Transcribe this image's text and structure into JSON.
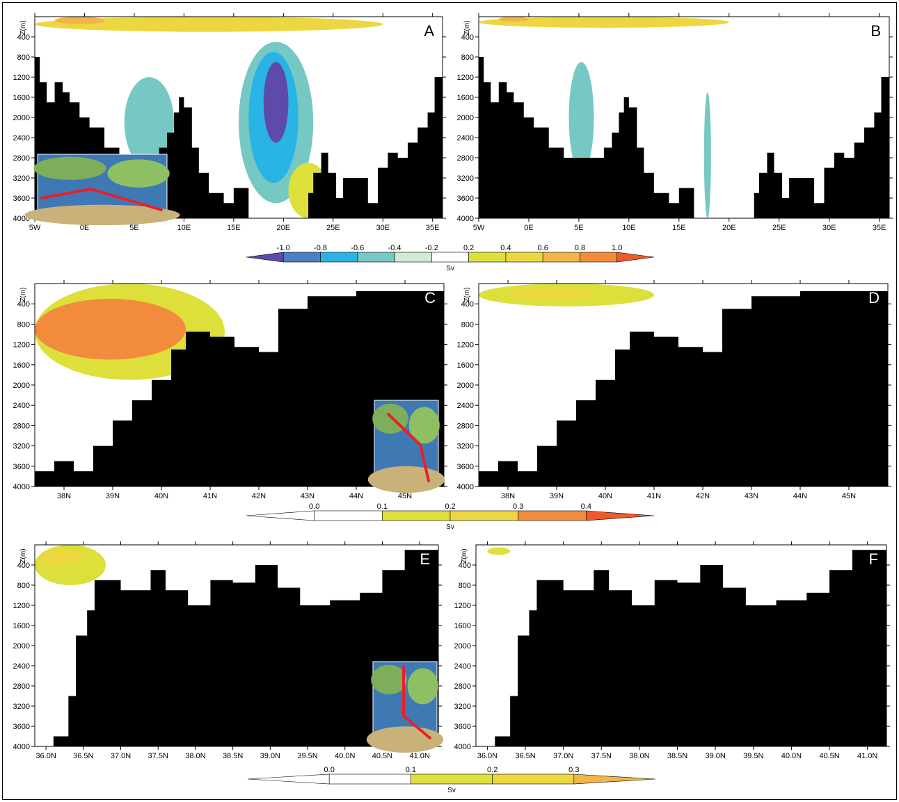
{
  "colors": {
    "land": "#000000",
    "neg": [
      "#d2e9d3",
      "#76c8c3",
      "#2ab4e6",
      "#4e7fc4",
      "#5e4aa8"
    ],
    "pos": [
      "#dde03a",
      "#ecd740",
      "#f2b54a",
      "#f28c3c",
      "#ef5a2a"
    ]
  },
  "colorbars": [
    {
      "ticks": [
        "-1.0",
        "-0.8",
        "-0.6",
        "-0.4",
        "-0.2",
        "0.2",
        "0.4",
        "0.6",
        "0.8",
        "1.0"
      ],
      "unit": "Sv"
    },
    {
      "ticks": [
        "0.0",
        "0.1",
        "0.2",
        "0.3",
        "0.4"
      ],
      "unit": "Sv"
    },
    {
      "ticks": [
        "0.0",
        "0.1",
        "0.2",
        "0.3"
      ],
      "unit": "Sv"
    }
  ],
  "chart_data": [
    {
      "type": "heatmap",
      "panel": "A",
      "ylabel": "Z(m)",
      "xticks": [
        "5W",
        "0E",
        "5E",
        "10E",
        "15E",
        "20E",
        "25E",
        "30E",
        "35E"
      ],
      "yticks": [
        "400",
        "800",
        "1200",
        "1600",
        "2000",
        "2400",
        "2800",
        "3200",
        "3600",
        "4000"
      ],
      "xrange": [
        -5,
        36
      ],
      "yrange": [
        0,
        4000
      ],
      "bathymetry": [
        [
          -5.0,
          800
        ],
        [
          -4.5,
          1300
        ],
        [
          -3.8,
          1700
        ],
        [
          -3.0,
          1300
        ],
        [
          -2.2,
          1500
        ],
        [
          -1.5,
          1700
        ],
        [
          -0.5,
          2000
        ],
        [
          0.5,
          2200
        ],
        [
          2.0,
          2600
        ],
        [
          3.5,
          2800
        ],
        [
          5.0,
          3000
        ],
        [
          6.5,
          2800
        ],
        [
          7.5,
          2600
        ],
        [
          8.3,
          2300
        ],
        [
          9.0,
          1900
        ],
        [
          9.5,
          1600
        ],
        [
          10.0,
          1800
        ],
        [
          10.8,
          2600
        ],
        [
          11.5,
          3100
        ],
        [
          12.5,
          3500
        ],
        [
          14.0,
          3700
        ],
        [
          15.0,
          3400
        ],
        [
          16.5,
          4000
        ],
        [
          21.5,
          4000
        ],
        [
          22.5,
          3500
        ],
        [
          23.0,
          3100
        ],
        [
          23.8,
          2700
        ],
        [
          24.5,
          3100
        ],
        [
          25.3,
          3600
        ],
        [
          26.0,
          3200
        ],
        [
          27.5,
          3200
        ],
        [
          28.5,
          3700
        ],
        [
          29.5,
          3000
        ],
        [
          30.5,
          2700
        ],
        [
          31.5,
          2800
        ],
        [
          32.5,
          2500
        ],
        [
          33.5,
          2200
        ],
        [
          34.5,
          1900
        ],
        [
          35.2,
          1200
        ],
        [
          36.0,
          0
        ]
      ],
      "features": [
        {
          "kind": "surface-cell",
          "x": [
            -5.0,
            30.0
          ],
          "z": [
            0,
            300
          ],
          "value": 0.4
        },
        {
          "kind": "surface-core",
          "x": [
            -3.0,
            2.0
          ],
          "z": [
            0,
            150
          ],
          "value": 0.7
        },
        {
          "kind": "deep-cell",
          "x": [
            15.5,
            23.0
          ],
          "z": [
            500,
            3700
          ],
          "value": -0.2
        },
        {
          "kind": "deep-cell",
          "x": [
            16.5,
            21.5
          ],
          "z": [
            700,
            3300
          ],
          "value": -0.5
        },
        {
          "kind": "deep-cell",
          "x": [
            18.0,
            20.5
          ],
          "z": [
            900,
            2500
          ],
          "value": -0.8
        },
        {
          "kind": "deep-cell",
          "x": [
            4.0,
            9.0
          ],
          "z": [
            1200,
            3000
          ],
          "value": -0.2
        },
        {
          "kind": "deep-cell",
          "x": [
            20.5,
            24.5
          ],
          "z": [
            2900,
            4000
          ],
          "value": 0.2
        }
      ]
    },
    {
      "type": "heatmap",
      "panel": "B",
      "ylabel": "Z(m)",
      "xticks": [
        "5W",
        "0E",
        "5E",
        "10E",
        "15E",
        "20E",
        "25E",
        "30E",
        "35E"
      ],
      "yticks": [
        "400",
        "800",
        "1200",
        "1600",
        "2000",
        "2400",
        "2800",
        "3200",
        "3600",
        "4000"
      ],
      "xrange": [
        -5,
        36
      ],
      "yrange": [
        0,
        4000
      ],
      "bathymetry": [
        [
          -5.0,
          800
        ],
        [
          -4.5,
          1300
        ],
        [
          -3.8,
          1700
        ],
        [
          -3.0,
          1300
        ],
        [
          -2.2,
          1500
        ],
        [
          -1.5,
          1700
        ],
        [
          -0.5,
          2000
        ],
        [
          0.5,
          2200
        ],
        [
          2.0,
          2600
        ],
        [
          3.5,
          2800
        ],
        [
          5.0,
          2800
        ],
        [
          6.5,
          2800
        ],
        [
          7.5,
          2600
        ],
        [
          8.3,
          2300
        ],
        [
          9.0,
          1900
        ],
        [
          9.5,
          1600
        ],
        [
          10.0,
          1800
        ],
        [
          10.8,
          2600
        ],
        [
          11.5,
          3100
        ],
        [
          12.5,
          3500
        ],
        [
          14.0,
          3700
        ],
        [
          15.0,
          3400
        ],
        [
          16.5,
          4000
        ],
        [
          21.5,
          4000
        ],
        [
          22.5,
          3500
        ],
        [
          23.0,
          3100
        ],
        [
          23.8,
          2700
        ],
        [
          24.5,
          3100
        ],
        [
          25.3,
          3600
        ],
        [
          26.0,
          3200
        ],
        [
          27.5,
          3200
        ],
        [
          28.5,
          3700
        ],
        [
          29.5,
          3000
        ],
        [
          30.5,
          2700
        ],
        [
          31.5,
          2800
        ],
        [
          32.5,
          2500
        ],
        [
          33.5,
          2200
        ],
        [
          34.5,
          1900
        ],
        [
          35.2,
          1200
        ],
        [
          36.0,
          0
        ]
      ],
      "features": [
        {
          "kind": "surface-cell",
          "x": [
            -5.0,
            20.0
          ],
          "z": [
            0,
            220
          ],
          "value": 0.4
        },
        {
          "kind": "surface-core",
          "x": [
            -3.0,
            0.0
          ],
          "z": [
            0,
            100
          ],
          "value": 0.7
        },
        {
          "kind": "deep-cell",
          "x": [
            4.0,
            6.5
          ],
          "z": [
            900,
            3100
          ],
          "value": -0.2
        },
        {
          "kind": "deep-cell",
          "x": [
            17.5,
            18.2
          ],
          "z": [
            1500,
            4000
          ],
          "value": -0.2
        }
      ]
    },
    {
      "type": "heatmap",
      "panel": "C",
      "ylabel": "Z(m)",
      "xticks": [
        "38N",
        "39N",
        "40N",
        "41N",
        "42N",
        "43N",
        "44N",
        "45N"
      ],
      "yticks": [
        "400",
        "800",
        "1200",
        "1600",
        "2000",
        "2400",
        "2800",
        "3200",
        "3600",
        "4000"
      ],
      "xrange": [
        37.4,
        45.8
      ],
      "yrange": [
        0,
        4000
      ],
      "bathymetry": [
        [
          37.4,
          3700
        ],
        [
          37.8,
          3500
        ],
        [
          38.2,
          3700
        ],
        [
          38.6,
          3200
        ],
        [
          39.0,
          2700
        ],
        [
          39.4,
          2300
        ],
        [
          39.8,
          1900
        ],
        [
          40.2,
          1300
        ],
        [
          40.5,
          950
        ],
        [
          41.0,
          1050
        ],
        [
          41.5,
          1250
        ],
        [
          42.0,
          1350
        ],
        [
          42.4,
          500
        ],
        [
          43.0,
          250
        ],
        [
          44.0,
          150
        ],
        [
          45.8,
          50
        ]
      ],
      "features": [
        {
          "kind": "surface-cell",
          "x": [
            37.4,
            41.3
          ],
          "z": [
            0,
            1900
          ],
          "value": 0.15
        },
        {
          "kind": "surface-core",
          "x": [
            37.4,
            40.5
          ],
          "z": [
            300,
            1500
          ],
          "value": 0.35
        }
      ]
    },
    {
      "type": "heatmap",
      "panel": "D",
      "ylabel": "Z(m)",
      "xticks": [
        "38N",
        "39N",
        "40N",
        "41N",
        "42N",
        "43N",
        "44N",
        "45N"
      ],
      "yticks": [
        "400",
        "800",
        "1200",
        "1600",
        "2000",
        "2400",
        "2800",
        "3200",
        "3600",
        "4000"
      ],
      "xrange": [
        37.4,
        45.8
      ],
      "yrange": [
        0,
        4000
      ],
      "bathymetry": [
        [
          37.4,
          3700
        ],
        [
          37.8,
          3500
        ],
        [
          38.2,
          3700
        ],
        [
          38.6,
          3200
        ],
        [
          39.0,
          2700
        ],
        [
          39.4,
          2300
        ],
        [
          39.8,
          1900
        ],
        [
          40.2,
          1300
        ],
        [
          40.5,
          950
        ],
        [
          41.0,
          1050
        ],
        [
          41.5,
          1250
        ],
        [
          42.0,
          1350
        ],
        [
          42.4,
          500
        ],
        [
          43.0,
          250
        ],
        [
          44.0,
          150
        ],
        [
          45.8,
          50
        ]
      ],
      "features": [
        {
          "kind": "surface-cell",
          "x": [
            37.4,
            41.0
          ],
          "z": [
            0,
            450
          ],
          "value": 0.15
        },
        {
          "kind": "surface-core",
          "x": [
            38.0,
            39.8
          ],
          "z": [
            100,
            300
          ],
          "value": 0.25
        }
      ]
    },
    {
      "type": "heatmap",
      "panel": "E",
      "ylabel": "Z(m)",
      "xticks": [
        "36.0N",
        "36.5N",
        "37.0N",
        "37.5N",
        "38.0N",
        "38.5N",
        "39.0N",
        "39.5N",
        "40.0N",
        "40.5N",
        "41.0N"
      ],
      "yticks": [
        "400",
        "800",
        "1200",
        "1600",
        "2000",
        "2400",
        "2800",
        "3200",
        "3600",
        "4000"
      ],
      "xrange": [
        35.85,
        41.25
      ],
      "yrange": [
        0,
        4000
      ],
      "bathymetry": [
        [
          35.85,
          4000
        ],
        [
          36.1,
          3800
        ],
        [
          36.3,
          3000
        ],
        [
          36.4,
          1800
        ],
        [
          36.55,
          1300
        ],
        [
          36.65,
          700
        ],
        [
          37.0,
          900
        ],
        [
          37.4,
          500
        ],
        [
          37.6,
          900
        ],
        [
          37.9,
          1200
        ],
        [
          38.2,
          700
        ],
        [
          38.5,
          750
        ],
        [
          38.8,
          400
        ],
        [
          39.1,
          850
        ],
        [
          39.4,
          1200
        ],
        [
          39.8,
          1100
        ],
        [
          40.2,
          950
        ],
        [
          40.5,
          500
        ],
        [
          40.8,
          100
        ],
        [
          41.25,
          0
        ]
      ],
      "features": [
        {
          "kind": "surface-cell",
          "x": [
            35.85,
            36.8
          ],
          "z": [
            0,
            800
          ],
          "value": 0.15
        },
        {
          "kind": "surface-core",
          "x": [
            35.9,
            36.5
          ],
          "z": [
            100,
            400
          ],
          "value": 0.25
        }
      ]
    },
    {
      "type": "heatmap",
      "panel": "F",
      "ylabel": "Z(m)",
      "xticks": [
        "36.0N",
        "36.5N",
        "37.0N",
        "37.5N",
        "38.0N",
        "38.5N",
        "39.0N",
        "39.5N",
        "40.0N",
        "40.5N",
        "41.0N"
      ],
      "yticks": [
        "400",
        "800",
        "1200",
        "1600",
        "2000",
        "2400",
        "2800",
        "3200",
        "3600",
        "4000"
      ],
      "xrange": [
        35.85,
        41.25
      ],
      "yrange": [
        0,
        4000
      ],
      "bathymetry": [
        [
          35.85,
          4000
        ],
        [
          36.1,
          3800
        ],
        [
          36.3,
          3000
        ],
        [
          36.4,
          1800
        ],
        [
          36.55,
          1300
        ],
        [
          36.65,
          700
        ],
        [
          37.0,
          900
        ],
        [
          37.4,
          500
        ],
        [
          37.6,
          900
        ],
        [
          37.9,
          1200
        ],
        [
          38.2,
          700
        ],
        [
          38.5,
          750
        ],
        [
          38.8,
          400
        ],
        [
          39.1,
          850
        ],
        [
          39.4,
          1200
        ],
        [
          39.8,
          1100
        ],
        [
          40.2,
          950
        ],
        [
          40.5,
          500
        ],
        [
          40.8,
          100
        ],
        [
          41.25,
          0
        ]
      ],
      "features": [
        {
          "kind": "surface-cell",
          "x": [
            36.0,
            36.3
          ],
          "z": [
            50,
            200
          ],
          "value": 0.15
        }
      ]
    }
  ]
}
